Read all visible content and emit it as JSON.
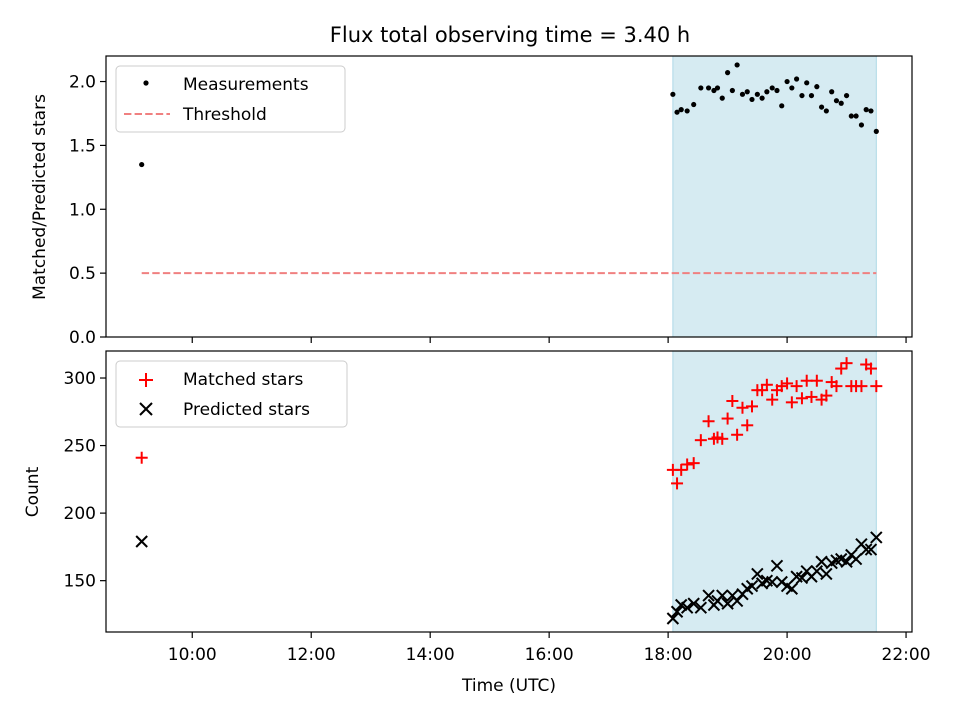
{
  "title": "Flux total observing time = 3.40 h",
  "chart_data": [
    {
      "type": "scatter",
      "ylabel": "Matched/Predicted stars",
      "ylim": [
        0,
        2.2
      ],
      "yticks": [
        0.0,
        0.5,
        1.0,
        1.5,
        2.0
      ],
      "ytick_labels": [
        "0.0",
        "0.5",
        "1.0",
        "1.5",
        "2.0"
      ],
      "shaded_interval": {
        "start_h": 18.08,
        "end_h": 21.5,
        "color": "#add8e6"
      },
      "legend": {
        "location": "upper-left",
        "entries": [
          "Measurements",
          "Threshold"
        ]
      },
      "series": [
        {
          "name": "Measurements",
          "marker": "dot",
          "color": "#000000",
          "x_hours": [
            9.15,
            18.08,
            18.15,
            18.22,
            18.32,
            18.43,
            18.55,
            18.68,
            18.77,
            18.83,
            18.91,
            19.0,
            19.08,
            19.16,
            19.25,
            19.33,
            19.41,
            19.5,
            19.58,
            19.66,
            19.75,
            19.83,
            19.91,
            20.0,
            20.08,
            20.16,
            20.25,
            20.33,
            20.41,
            20.5,
            20.58,
            20.66,
            20.75,
            20.83,
            20.91,
            21.0,
            21.08,
            21.16,
            21.25,
            21.33,
            21.41,
            21.5
          ],
          "values": [
            1.35,
            1.9,
            1.76,
            1.78,
            1.77,
            1.82,
            1.95,
            1.95,
            1.93,
            1.95,
            1.87,
            2.07,
            1.93,
            2.13,
            1.9,
            1.92,
            1.86,
            1.9,
            1.87,
            1.92,
            1.95,
            1.93,
            1.81,
            2.0,
            1.95,
            2.02,
            1.89,
            1.99,
            1.89,
            1.96,
            1.8,
            1.77,
            1.92,
            1.85,
            1.83,
            1.89,
            1.73,
            1.73,
            1.66,
            1.78,
            1.77,
            1.61
          ]
        },
        {
          "name": "Threshold",
          "line": "dashed",
          "color": "#f08080",
          "x_hours": [
            9.15,
            21.5
          ],
          "values": [
            0.5,
            0.5
          ]
        }
      ]
    },
    {
      "type": "scatter",
      "xlabel": "Time (UTC)",
      "ylabel": "Count",
      "ylim": [
        112,
        320
      ],
      "yticks": [
        150,
        200,
        250,
        300
      ],
      "ytick_labels": [
        "150",
        "200",
        "250",
        "300"
      ],
      "shaded_interval": {
        "start_h": 18.08,
        "end_h": 21.5,
        "color": "#add8e6"
      },
      "legend": {
        "location": "upper-left",
        "entries": [
          "Matched stars",
          "Predicted stars"
        ]
      },
      "series": [
        {
          "name": "Matched stars",
          "marker": "plus",
          "color": "#ff0000",
          "x_hours": [
            9.15,
            18.08,
            18.15,
            18.22,
            18.32,
            18.43,
            18.55,
            18.68,
            18.77,
            18.83,
            18.91,
            19.0,
            19.08,
            19.16,
            19.25,
            19.33,
            19.41,
            19.5,
            19.58,
            19.66,
            19.75,
            19.83,
            19.91,
            20.0,
            20.08,
            20.16,
            20.25,
            20.33,
            20.41,
            20.5,
            20.58,
            20.66,
            20.75,
            20.83,
            20.91,
            21.0,
            21.08,
            21.16,
            21.25,
            21.33,
            21.41,
            21.5
          ],
          "values": [
            241,
            232,
            222,
            232,
            236,
            237,
            254,
            268,
            255,
            256,
            255,
            270,
            283,
            258,
            278,
            265,
            279,
            291,
            291,
            295,
            284,
            291,
            294,
            296,
            282,
            294,
            285,
            298,
            286,
            298,
            284,
            287,
            297,
            294,
            307,
            311,
            294,
            294,
            294,
            310,
            307,
            294
          ]
        },
        {
          "name": "Predicted stars",
          "marker": "x",
          "color": "#000000",
          "x_hours": [
            9.15,
            18.08,
            18.15,
            18.22,
            18.32,
            18.43,
            18.55,
            18.68,
            18.77,
            18.83,
            18.91,
            19.0,
            19.08,
            19.16,
            19.25,
            19.33,
            19.41,
            19.5,
            19.58,
            19.66,
            19.75,
            19.83,
            19.91,
            20.0,
            20.08,
            20.16,
            20.25,
            20.33,
            20.41,
            20.5,
            20.58,
            20.66,
            20.75,
            20.83,
            20.91,
            21.0,
            21.08,
            21.16,
            21.25,
            21.33,
            21.41,
            21.5
          ],
          "values": [
            179,
            122,
            127,
            132,
            130,
            133,
            130,
            139,
            132,
            135,
            139,
            133,
            139,
            135,
            140,
            144,
            146,
            155,
            148,
            150,
            149,
            161,
            149,
            146,
            144,
            153,
            152,
            157,
            153,
            157,
            164,
            155,
            163,
            165,
            166,
            164,
            169,
            166,
            177,
            173,
            173,
            182
          ]
        }
      ]
    }
  ],
  "xaxis": {
    "tick_hours": [
      10,
      12,
      14,
      16,
      18,
      20,
      22
    ],
    "tick_labels": [
      "10:00",
      "12:00",
      "14:00",
      "16:00",
      "18:00",
      "20:00",
      "22:00"
    ],
    "range_h": [
      8.55,
      22.1
    ]
  }
}
